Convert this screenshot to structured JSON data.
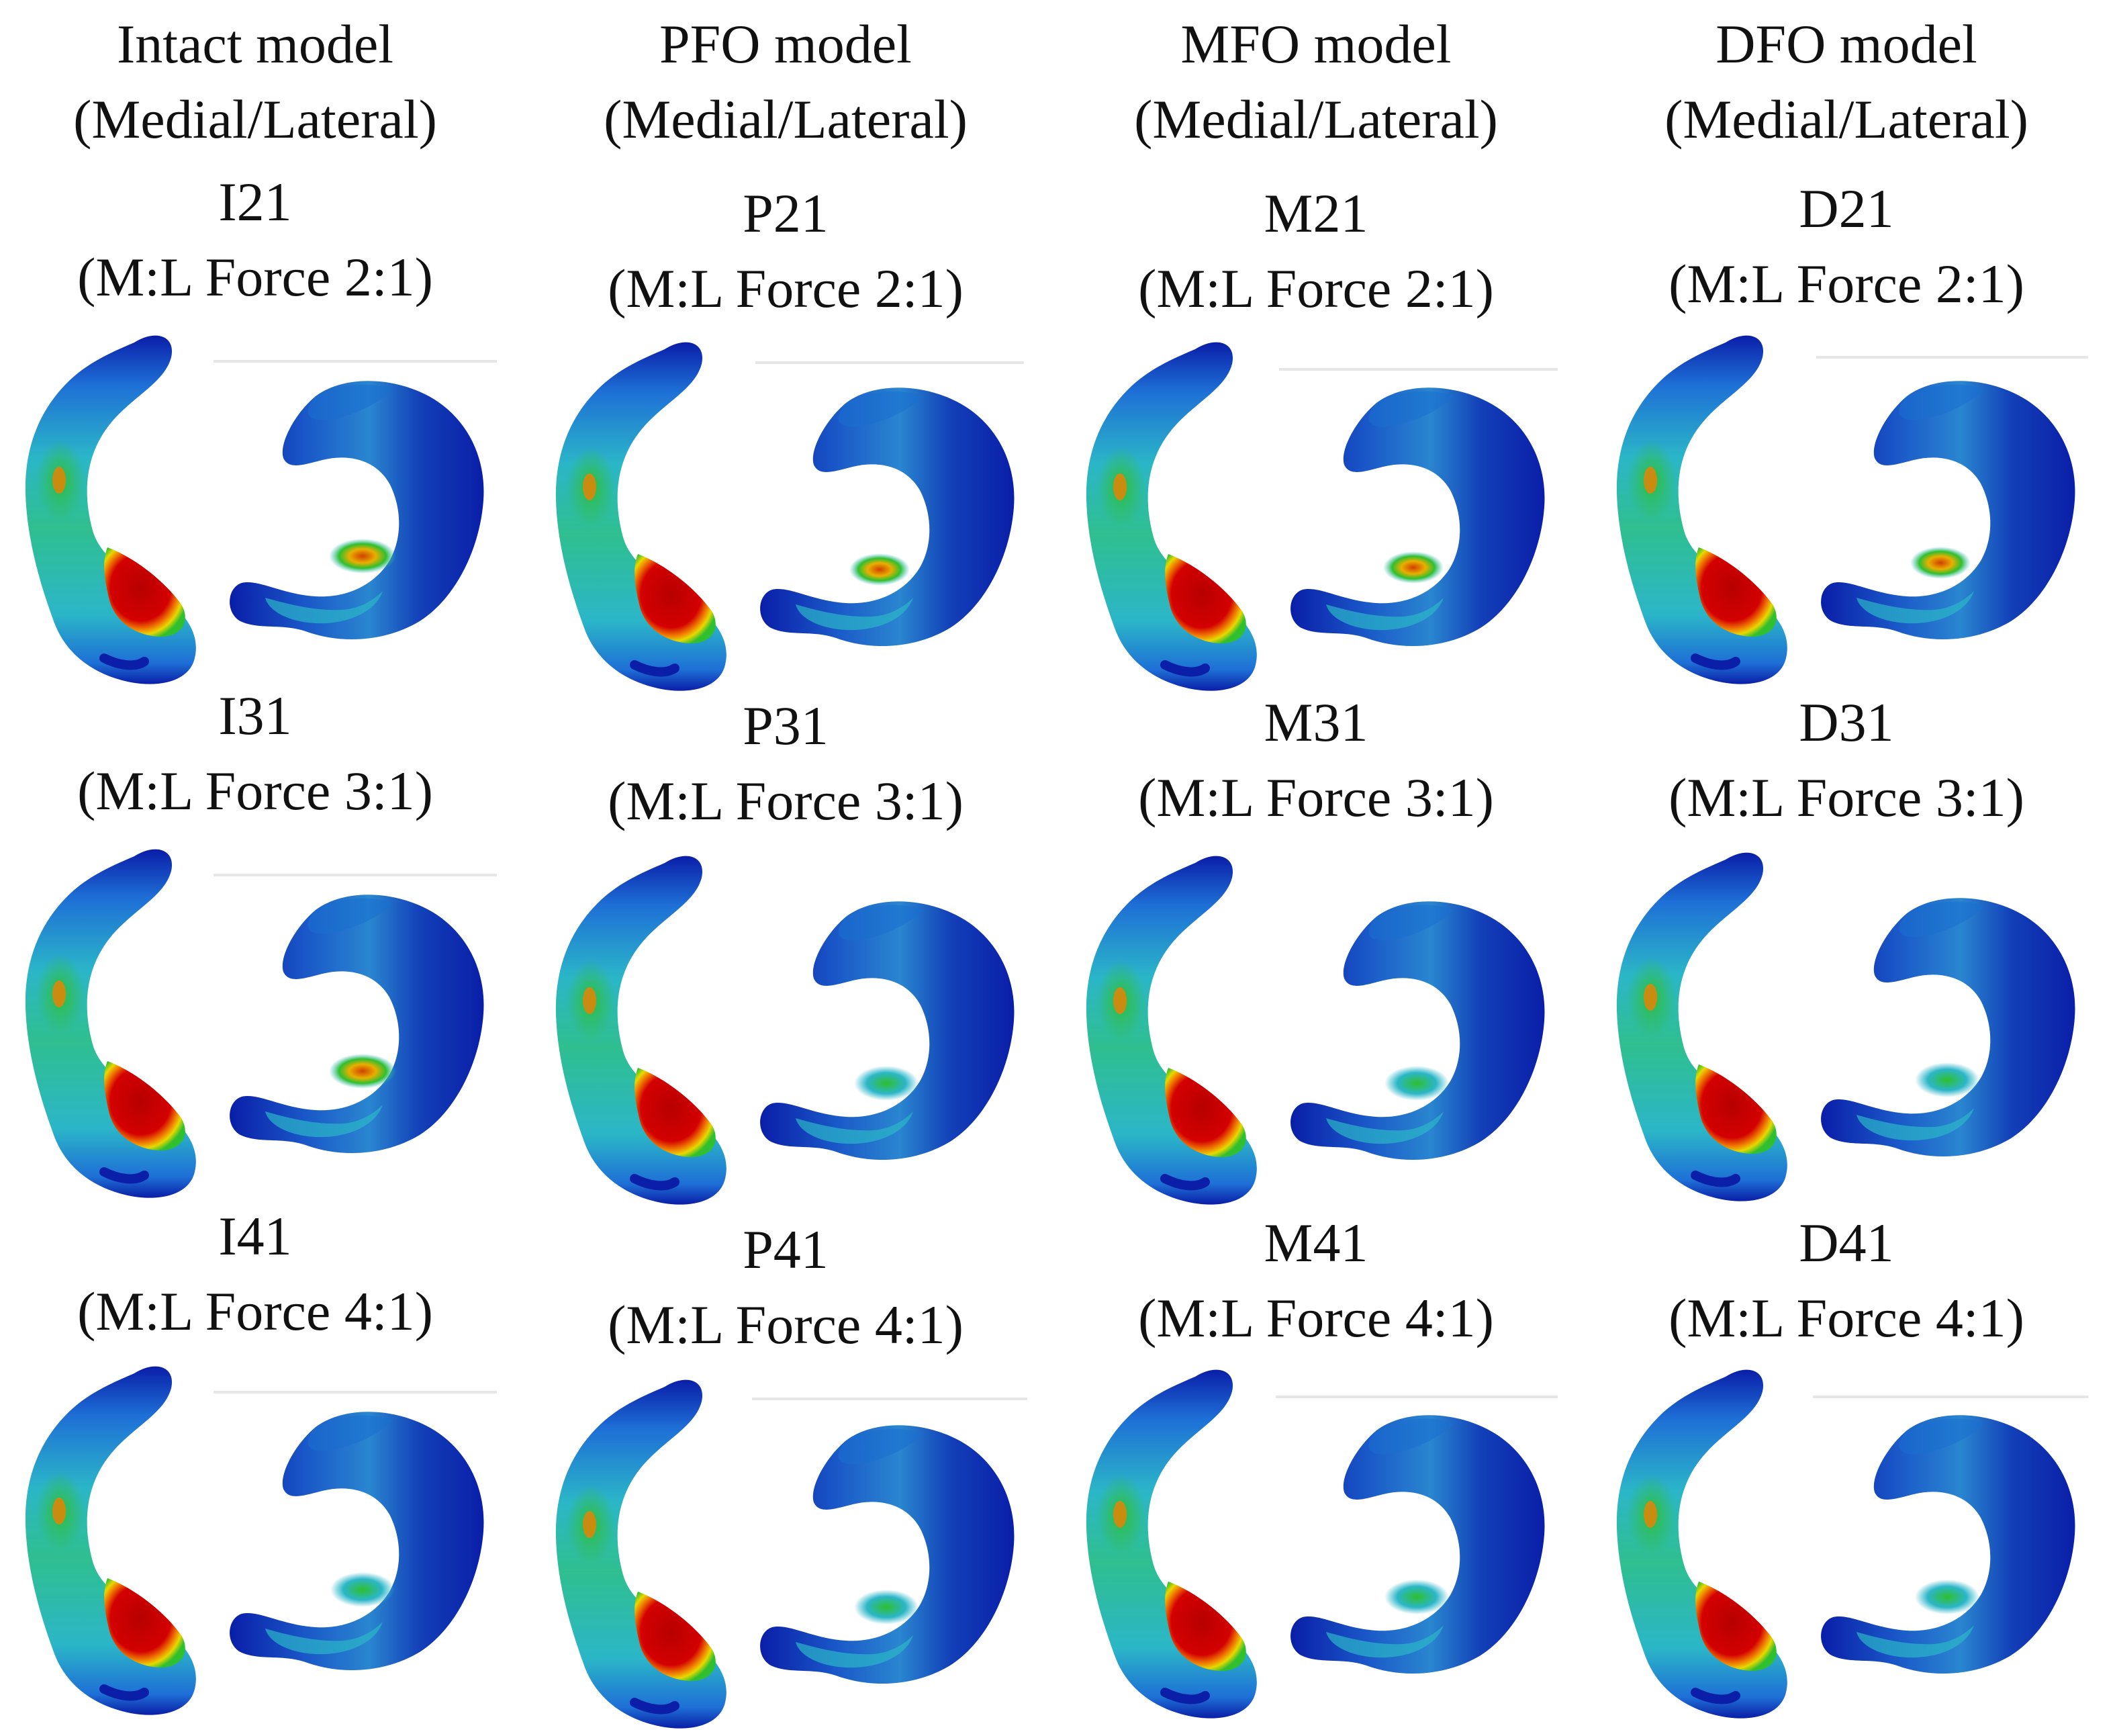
{
  "figure": {
    "columns": [
      {
        "title": "Intact model",
        "subtitle": "(Medial/Lateral)"
      },
      {
        "title": "PFO model",
        "subtitle": "(Medial/Lateral)"
      },
      {
        "title": "MFO model",
        "subtitle": "(Medial/Lateral)"
      },
      {
        "title": "DFO model",
        "subtitle": "(Medial/Lateral)"
      }
    ],
    "rows": [
      {
        "force": "(M:L Force 2:1)",
        "codes": [
          "I21",
          "P21",
          "M21",
          "D21"
        ]
      },
      {
        "force": "(M:L Force 3:1)",
        "codes": [
          "I31",
          "P31",
          "M31",
          "D31"
        ]
      },
      {
        "force": "(M:L Force 4:1)",
        "codes": [
          "I41",
          "P41",
          "M41",
          "D41"
        ]
      }
    ],
    "colors": {
      "high": "#c00000",
      "upper": "#f08000",
      "mid_high": "#e8d800",
      "mid": "#2fbf2f",
      "low_mid": "#2bb6c8",
      "low": "#1e6fd6",
      "lowest": "#0a1ea8"
    }
  }
}
